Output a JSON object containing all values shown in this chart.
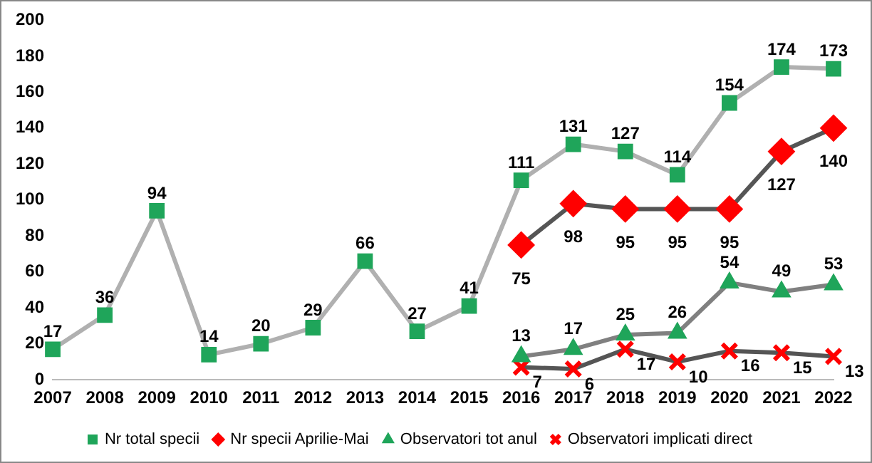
{
  "chart_data": {
    "type": "line",
    "categories": [
      "2007",
      "2008",
      "2009",
      "2010",
      "2011",
      "2012",
      "2013",
      "2014",
      "2015",
      "2016",
      "2017",
      "2018",
      "2019",
      "2020",
      "2021",
      "2022"
    ],
    "series": [
      {
        "name": "Nr total specii",
        "color": "#1fa55a",
        "marker": "square",
        "values": [
          17,
          36,
          94,
          14,
          20,
          29,
          66,
          27,
          41,
          111,
          131,
          127,
          114,
          154,
          174,
          173
        ]
      },
      {
        "name": "Nr specii Aprilie-Mai",
        "color": "#ff0000",
        "marker": "diamond",
        "values": [
          null,
          null,
          null,
          null,
          null,
          null,
          null,
          null,
          null,
          75,
          98,
          95,
          95,
          95,
          127,
          140
        ]
      },
      {
        "name": "Observatori tot anul",
        "color": "#1fa55a",
        "marker": "triangle",
        "values": [
          null,
          null,
          null,
          null,
          null,
          null,
          null,
          null,
          null,
          13,
          17,
          25,
          26,
          54,
          49,
          53
        ]
      },
      {
        "name": "Observatori implicati direct",
        "color": "#ff0000",
        "marker": "cross",
        "values": [
          null,
          null,
          null,
          null,
          null,
          null,
          null,
          null,
          null,
          7,
          6,
          17,
          10,
          16,
          15,
          13
        ]
      }
    ],
    "ylim": [
      0,
      200
    ],
    "yticks": [
      0,
      20,
      40,
      60,
      80,
      100,
      120,
      140,
      160,
      180,
      200
    ],
    "grid": false,
    "legend": "bottom",
    "data_labels": true
  }
}
